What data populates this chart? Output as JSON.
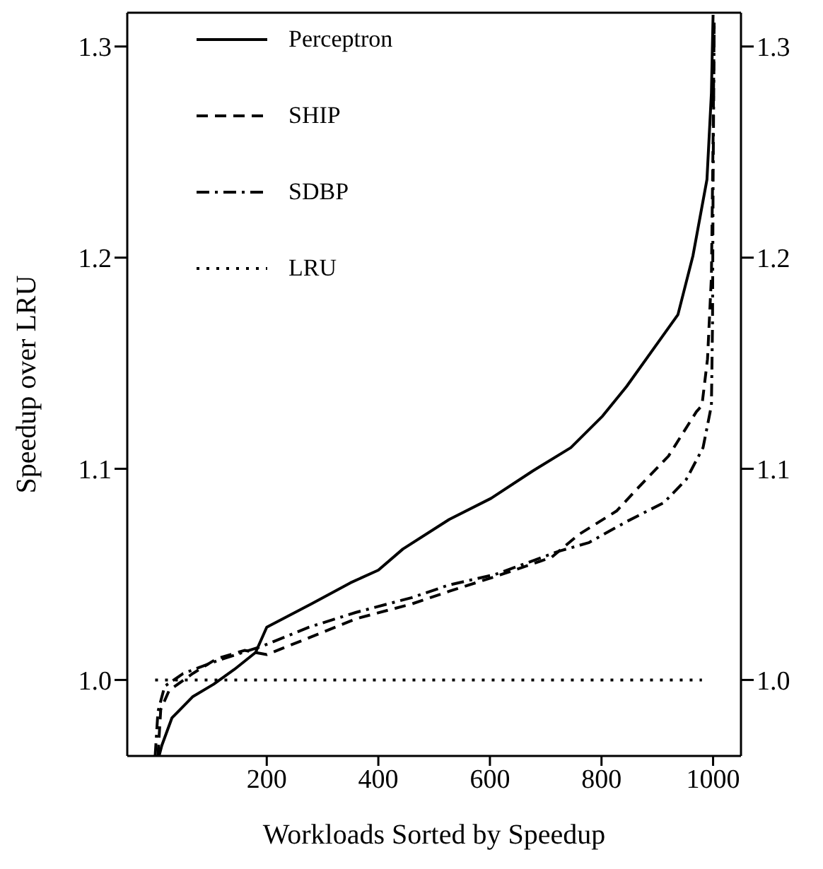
{
  "chart_data": {
    "type": "line",
    "xlabel": "Workloads Sorted by Speedup",
    "ylabel": "Speedup over LRU",
    "xlim": [
      -50,
      1050
    ],
    "xticks": [
      200,
      400,
      600,
      800,
      1000
    ],
    "ylim": [
      0.964,
      1.316
    ],
    "yticks": [
      {
        "value": 1.0,
        "label": "1.0"
      },
      {
        "value": 1.1,
        "label": "1.1"
      },
      {
        "value": 1.2,
        "label": "1.2"
      },
      {
        "value": 1.3,
        "label": "1.3"
      }
    ],
    "y2lim": [
      0.964,
      1.316
    ],
    "y2ticks": [
      {
        "value": 1.0,
        "label": "1.0"
      },
      {
        "value": 1.1,
        "label": "1.1"
      },
      {
        "value": 1.2,
        "label": "1.2"
      },
      {
        "value": 1.3,
        "label": "1.3"
      }
    ],
    "legend": "top left",
    "marker": "none",
    "series": [
      {
        "name": "Perceptron",
        "color": "#000000",
        "line_style": "solid",
        "x": [
          7,
          12,
          30,
          67,
          105,
          142,
          180,
          200,
          280,
          350,
          400,
          444,
          527,
          602,
          677,
          745,
          802,
          845,
          937,
          964,
          989,
          997,
          1000
        ],
        "values": [
          0.964,
          0.969,
          0.982,
          0.992,
          0.998,
          1.005,
          1.013,
          1.025,
          1.036,
          1.046,
          1.052,
          1.062,
          1.076,
          1.086,
          1.099,
          1.11,
          1.125,
          1.139,
          1.173,
          1.201,
          1.237,
          1.278,
          1.315
        ]
      },
      {
        "name": "SHIP",
        "color": "#000000",
        "line_style": "dashed",
        "x": [
          5,
          10,
          25,
          67,
          110,
          160,
          200,
          276,
          360,
          460,
          527,
          610,
          710,
          760,
          827,
          862,
          920,
          970,
          980,
          990,
          997,
          1000,
          1002
        ],
        "values": [
          0.964,
          0.986,
          0.995,
          1.003,
          1.01,
          1.014,
          1.012,
          1.02,
          1.029,
          1.036,
          1.042,
          1.049,
          1.058,
          1.069,
          1.08,
          1.09,
          1.106,
          1.127,
          1.13,
          1.152,
          1.191,
          1.256,
          1.313
        ]
      },
      {
        "name": "SDBP",
        "color": "#000000",
        "line_style": "dashdot",
        "x": [
          0,
          5,
          17,
          50,
          110,
          192,
          276,
          360,
          460,
          527,
          610,
          724,
          777,
          845,
          912,
          952,
          982,
          997,
          999,
          1000,
          1002
        ],
        "values": [
          0.964,
          0.985,
          0.997,
          1.003,
          1.009,
          1.016,
          1.025,
          1.032,
          1.039,
          1.045,
          1.05,
          1.061,
          1.065,
          1.075,
          1.084,
          1.095,
          1.11,
          1.13,
          1.169,
          1.235,
          1.31
        ]
      },
      {
        "name": "LRU",
        "color": "#000000",
        "line_style": "dotted",
        "x": [
          0,
          980
        ],
        "values": [
          1.0,
          1.0
        ]
      }
    ]
  }
}
